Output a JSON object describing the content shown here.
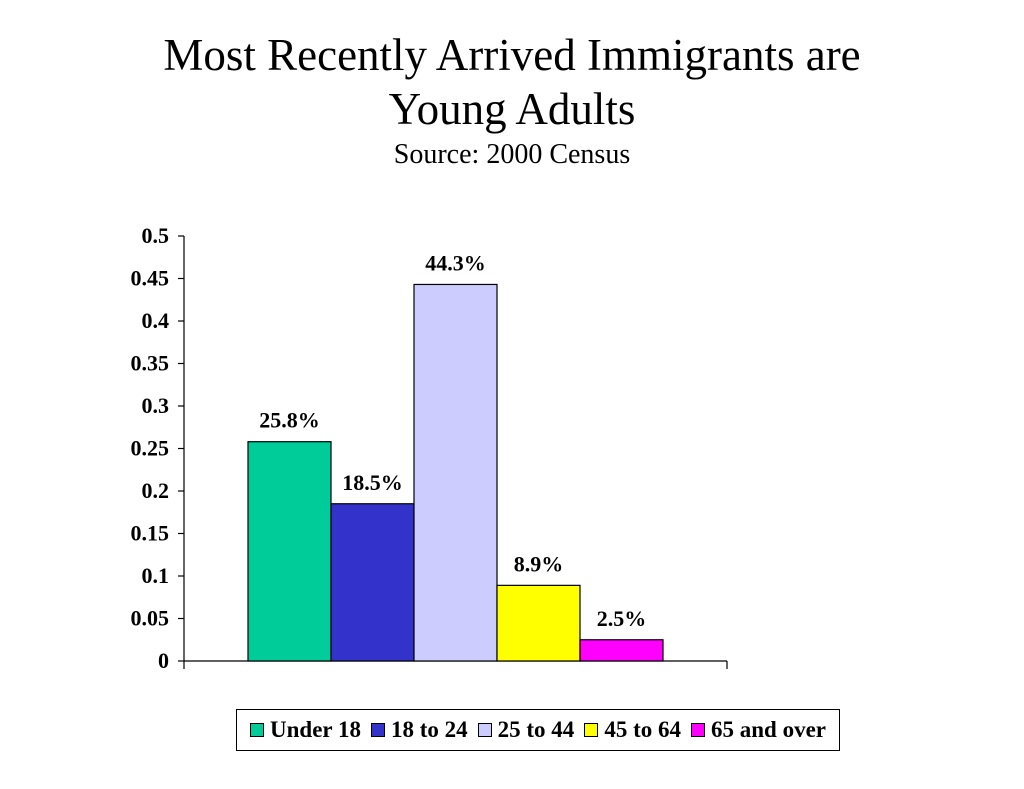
{
  "title": {
    "line1": "Most Recently Arrived Immigrants are",
    "line2": "Young Adults",
    "subtitle": "Source: 2000 Census"
  },
  "chart_data": {
    "type": "bar",
    "title": "Most Recently Arrived Immigrants are Young Adults",
    "subtitle": "Source: 2000 Census",
    "xlabel": "",
    "ylabel": "",
    "ylim": [
      0,
      0.5
    ],
    "yticks": [
      "0",
      "0.05",
      "0.1",
      "0.15",
      "0.2",
      "0.25",
      "0.3",
      "0.35",
      "0.4",
      "0.45",
      "0.5"
    ],
    "legend_position": "bottom",
    "grid": false,
    "series": [
      {
        "name": "Under 18",
        "value": 0.258,
        "label": "25.8%",
        "color": "#00CC99"
      },
      {
        "name": "18 to 24",
        "value": 0.185,
        "label": "18.5%",
        "color": "#3333CC"
      },
      {
        "name": "25 to 44",
        "value": 0.443,
        "label": "44.3%",
        "color": "#CCCCFF"
      },
      {
        "name": "45 to 64",
        "value": 0.089,
        "label": "8.9%",
        "color": "#FFFF00"
      },
      {
        "name": "65 and over",
        "value": 0.025,
        "label": "2.5%",
        "color": "#FF00FF"
      }
    ]
  }
}
